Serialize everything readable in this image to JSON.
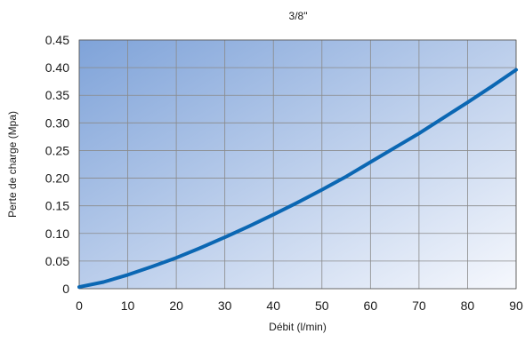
{
  "chart_data": {
    "type": "line",
    "title": "3/8\"",
    "xlabel": "Débit (l/min)",
    "ylabel": "Perte de charge (Mpa)",
    "xlim": [
      0,
      90
    ],
    "ylim": [
      0,
      0.45
    ],
    "x_ticks": [
      "0",
      "10",
      "20",
      "30",
      "40",
      "50",
      "60",
      "70",
      "80",
      "90"
    ],
    "y_ticks": [
      "0",
      "0.05",
      "0.10",
      "0.15",
      "0.20",
      "0.25",
      "0.30",
      "0.35",
      "0.40",
      "0.45"
    ],
    "x_tick_values": [
      0,
      10,
      20,
      30,
      40,
      50,
      60,
      70,
      80,
      90
    ],
    "y_tick_values": [
      0,
      0.05,
      0.1,
      0.15,
      0.2,
      0.25,
      0.3,
      0.35,
      0.4,
      0.45
    ],
    "grid": true,
    "series": [
      {
        "x": [
          0,
          5,
          10,
          15,
          20,
          25,
          30,
          35,
          40,
          45,
          50,
          55,
          60,
          65,
          70,
          75,
          80,
          85,
          90
        ],
        "y": [
          0.003,
          0.012,
          0.025,
          0.04,
          0.056,
          0.074,
          0.093,
          0.113,
          0.134,
          0.156,
          0.179,
          0.203,
          0.229,
          0.255,
          0.281,
          0.309,
          0.337,
          0.366,
          0.396
        ],
        "color": "#0b67b3"
      }
    ],
    "plot_gradient": [
      "#7fa3d9",
      "#f6f8fd"
    ]
  }
}
